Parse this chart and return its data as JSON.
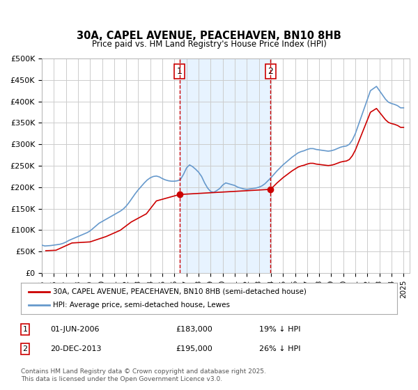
{
  "title": "30A, CAPEL AVENUE, PEACEHAVEN, BN10 8HB",
  "subtitle": "Price paid vs. HM Land Registry's House Price Index (HPI)",
  "legend_label_red": "30A, CAPEL AVENUE, PEACEHAVEN, BN10 8HB (semi-detached house)",
  "legend_label_blue": "HPI: Average price, semi-detached house, Lewes",
  "footnote": "Contains HM Land Registry data © Crown copyright and database right 2025.\nThis data is licensed under the Open Government Licence v3.0.",
  "marker1_date": "01-JUN-2006",
  "marker1_price": 183000,
  "marker1_hpi_text": "19% ↓ HPI",
  "marker2_date": "20-DEC-2013",
  "marker2_price": 195000,
  "marker2_hpi_text": "26% ↓ HPI",
  "marker1_x": 2006.42,
  "marker2_x": 2013.97,
  "vline1_x": 2006.42,
  "vline2_x": 2013.97,
  "ylim": [
    0,
    500000
  ],
  "xlim": [
    1995,
    2025.5
  ],
  "background_color": "#ffffff",
  "plot_bg_color": "#ffffff",
  "grid_color": "#cccccc",
  "shade_color": "#ddeeff",
  "red_color": "#cc0000",
  "blue_color": "#6699cc",
  "vline_color": "#cc0000",
  "hpi_data_x": [
    1995.0,
    1995.25,
    1995.5,
    1995.75,
    1996.0,
    1996.25,
    1996.5,
    1996.75,
    1997.0,
    1997.25,
    1997.5,
    1997.75,
    1998.0,
    1998.25,
    1998.5,
    1998.75,
    1999.0,
    1999.25,
    1999.5,
    1999.75,
    2000.0,
    2000.25,
    2000.5,
    2000.75,
    2001.0,
    2001.25,
    2001.5,
    2001.75,
    2002.0,
    2002.25,
    2002.5,
    2002.75,
    2003.0,
    2003.25,
    2003.5,
    2003.75,
    2004.0,
    2004.25,
    2004.5,
    2004.75,
    2005.0,
    2005.25,
    2005.5,
    2005.75,
    2006.0,
    2006.25,
    2006.5,
    2006.75,
    2007.0,
    2007.25,
    2007.5,
    2007.75,
    2008.0,
    2008.25,
    2008.5,
    2008.75,
    2009.0,
    2009.25,
    2009.5,
    2009.75,
    2010.0,
    2010.25,
    2010.5,
    2010.75,
    2011.0,
    2011.25,
    2011.5,
    2011.75,
    2012.0,
    2012.25,
    2012.5,
    2012.75,
    2013.0,
    2013.25,
    2013.5,
    2013.75,
    2014.0,
    2014.25,
    2014.5,
    2014.75,
    2015.0,
    2015.25,
    2015.5,
    2015.75,
    2016.0,
    2016.25,
    2016.5,
    2016.75,
    2017.0,
    2017.25,
    2017.5,
    2017.75,
    2018.0,
    2018.25,
    2018.5,
    2018.75,
    2019.0,
    2019.25,
    2019.5,
    2019.75,
    2020.0,
    2020.25,
    2020.5,
    2020.75,
    2021.0,
    2021.25,
    2021.5,
    2021.75,
    2022.0,
    2022.25,
    2022.5,
    2022.75,
    2023.0,
    2023.25,
    2023.5,
    2023.75,
    2024.0,
    2024.25,
    2024.5,
    2024.75,
    2025.0
  ],
  "hpi_data_y": [
    65000,
    63000,
    63500,
    64000,
    65000,
    66000,
    67000,
    69000,
    72000,
    76000,
    79000,
    82000,
    85000,
    88000,
    91000,
    94000,
    98000,
    104000,
    110000,
    116000,
    120000,
    124000,
    128000,
    132000,
    136000,
    140000,
    144000,
    149000,
    156000,
    165000,
    175000,
    185000,
    194000,
    202000,
    210000,
    217000,
    222000,
    225000,
    226000,
    224000,
    220000,
    217000,
    215000,
    214000,
    214000,
    215000,
    218000,
    230000,
    245000,
    252000,
    248000,
    242000,
    235000,
    225000,
    210000,
    198000,
    190000,
    188000,
    192000,
    197000,
    205000,
    210000,
    208000,
    206000,
    204000,
    200000,
    198000,
    196000,
    195000,
    196000,
    197000,
    198000,
    200000,
    203000,
    208000,
    215000,
    222000,
    230000,
    238000,
    245000,
    252000,
    258000,
    264000,
    270000,
    275000,
    280000,
    283000,
    285000,
    288000,
    290000,
    290000,
    288000,
    287000,
    286000,
    285000,
    284000,
    285000,
    287000,
    290000,
    293000,
    295000,
    296000,
    300000,
    310000,
    325000,
    345000,
    365000,
    385000,
    405000,
    425000,
    430000,
    435000,
    425000,
    415000,
    405000,
    398000,
    395000,
    393000,
    390000,
    385000,
    385000
  ],
  "price_data_x": [
    1995.33,
    1996.17,
    1997.5,
    1999.0,
    2000.33,
    2001.5,
    2002.42,
    2003.67,
    2004.5,
    2006.42,
    2013.97
  ],
  "price_data_y": [
    52000,
    53000,
    70000,
    72500,
    85000,
    99500,
    119000,
    138000,
    168000,
    183000,
    195000
  ],
  "x_ticks": [
    1995,
    1996,
    1997,
    1998,
    1999,
    2000,
    2001,
    2002,
    2003,
    2004,
    2005,
    2006,
    2007,
    2008,
    2009,
    2010,
    2011,
    2012,
    2013,
    2014,
    2015,
    2016,
    2017,
    2018,
    2019,
    2020,
    2021,
    2022,
    2023,
    2024,
    2025
  ],
  "y_ticks": [
    0,
    50000,
    100000,
    150000,
    200000,
    250000,
    300000,
    350000,
    400000,
    450000,
    500000
  ]
}
